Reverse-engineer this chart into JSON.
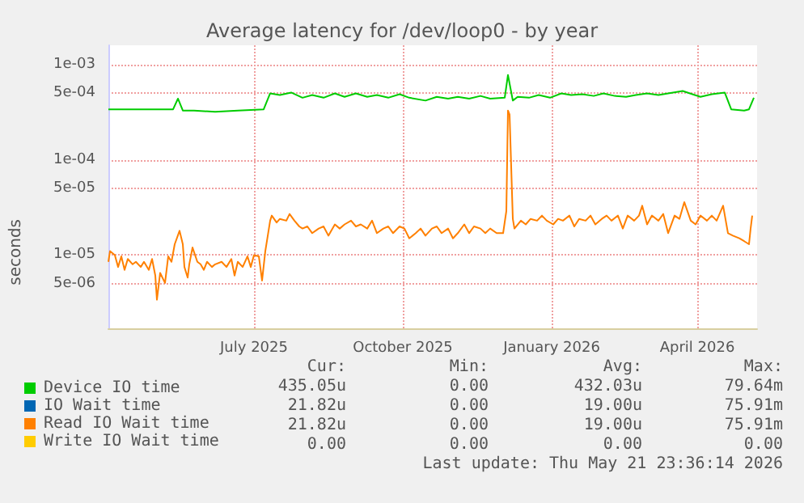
{
  "chart_data": {
    "type": "line",
    "title": "Average latency for /dev/loop0 - by year",
    "ylabel": "seconds",
    "log": "y",
    "grid": true,
    "legend": "bottom left",
    "marker": "none",
    "line_style": "solid",
    "xlim": [
      "2025-04-02",
      "2026-05-08"
    ],
    "xticks": [
      {
        "value": "2025-07-01",
        "label": "July 2025"
      },
      {
        "value": "2025-10-01",
        "label": "October 2025"
      },
      {
        "value": "2026-01-01",
        "label": "January 2026"
      },
      {
        "value": "2026-04-01",
        "label": "April 2026"
      }
    ],
    "ylim": [
      1.7e-06,
      0.0016
    ],
    "yticks": [
      {
        "value": 0.001,
        "label": "1e-03"
      },
      {
        "value": 0.0005,
        "label": "5e-04"
      },
      {
        "value": 0.0001,
        "label": "1e-04"
      },
      {
        "value": 5e-05,
        "label": "5e-05"
      },
      {
        "value": 1e-05,
        "label": "1e-05"
      },
      {
        "value": 5e-06,
        "label": "5e-06"
      }
    ],
    "series": [
      {
        "name": "Device IO time",
        "color": "#00cc00",
        "x": [
          "2025-04-02",
          "2025-05-12",
          "2025-05-15",
          "2025-05-18",
          "2025-05-25",
          "2025-06-07",
          "2025-06-21",
          "2025-07-07",
          "2025-07-11",
          "2025-07-17",
          "2025-07-24",
          "2025-07-31",
          "2025-08-06",
          "2025-08-13",
          "2025-08-20",
          "2025-08-26",
          "2025-09-02",
          "2025-09-09",
          "2025-09-15",
          "2025-09-22",
          "2025-09-29",
          "2025-10-05",
          "2025-10-15",
          "2025-10-22",
          "2025-10-29",
          "2025-11-04",
          "2025-11-11",
          "2025-11-18",
          "2025-11-24",
          "2025-12-03",
          "2025-12-05",
          "2025-12-08",
          "2025-12-11",
          "2025-12-18",
          "2025-12-24",
          "2025-12-31",
          "2026-01-07",
          "2026-01-13",
          "2026-01-20",
          "2026-01-27",
          "2026-02-02",
          "2026-02-09",
          "2026-02-16",
          "2026-02-22",
          "2026-03-01",
          "2026-03-08",
          "2026-03-14",
          "2026-03-23",
          "2026-03-29",
          "2026-04-03",
          "2026-04-10",
          "2026-04-18",
          "2026-04-22",
          "2026-04-30",
          "2026-05-03",
          "2026-05-06"
        ],
        "values": [
          0.00034,
          0.00034,
          0.00044,
          0.00033,
          0.00033,
          0.00032,
          0.00033,
          0.00034,
          0.0005,
          0.00048,
          0.00051,
          0.00045,
          0.00048,
          0.00045,
          0.0005,
          0.00046,
          0.0005,
          0.00046,
          0.00048,
          0.00045,
          0.00049,
          0.00045,
          0.00042,
          0.00046,
          0.00044,
          0.00046,
          0.00044,
          0.00047,
          0.00044,
          0.00045,
          0.00078,
          0.00042,
          0.00046,
          0.00045,
          0.00048,
          0.00045,
          0.0005,
          0.00048,
          0.00049,
          0.00047,
          0.0005,
          0.00047,
          0.00046,
          0.00048,
          0.0005,
          0.00048,
          0.0005,
          0.00053,
          0.00049,
          0.00046,
          0.00049,
          0.00051,
          0.00034,
          0.00033,
          0.00034,
          0.00045
        ]
      },
      {
        "name": "IO Wait time",
        "color": "#0066b3"
      },
      {
        "name": "Read IO Wait time",
        "color": "#ff8000",
        "x": [
          "2025-04-02",
          "2025-04-03",
          "2025-04-06",
          "2025-04-08",
          "2025-04-10",
          "2025-04-12",
          "2025-04-14",
          "2025-04-17",
          "2025-04-19",
          "2025-04-22",
          "2025-04-24",
          "2025-04-27",
          "2025-04-29",
          "2025-05-01",
          "2025-05-02",
          "2025-05-04",
          "2025-05-07",
          "2025-05-09",
          "2025-05-11",
          "2025-05-13",
          "2025-05-16",
          "2025-05-18",
          "2025-05-19",
          "2025-05-21",
          "2025-05-22",
          "2025-05-24",
          "2025-05-27",
          "2025-05-29",
          "2025-05-31",
          "2025-06-02",
          "2025-06-05",
          "2025-06-07",
          "2025-06-11",
          "2025-06-14",
          "2025-06-17",
          "2025-06-19",
          "2025-06-21",
          "2025-06-24",
          "2025-06-27",
          "2025-06-29",
          "2025-07-01",
          "2025-07-04",
          "2025-07-06",
          "2025-07-08",
          "2025-07-11",
          "2025-07-12",
          "2025-07-15",
          "2025-07-17",
          "2025-07-21",
          "2025-07-23",
          "2025-07-26",
          "2025-07-29",
          "2025-07-31",
          "2025-08-03",
          "2025-08-06",
          "2025-08-10",
          "2025-08-13",
          "2025-08-16",
          "2025-08-20",
          "2025-08-23",
          "2025-08-26",
          "2025-08-30",
          "2025-09-02",
          "2025-09-05",
          "2025-09-09",
          "2025-09-12",
          "2025-09-15",
          "2025-09-19",
          "2025-09-22",
          "2025-09-25",
          "2025-09-29",
          "2025-10-02",
          "2025-10-05",
          "2025-10-09",
          "2025-10-12",
          "2025-10-15",
          "2025-10-19",
          "2025-10-22",
          "2025-10-25",
          "2025-10-29",
          "2025-11-01",
          "2025-11-04",
          "2025-11-08",
          "2025-11-11",
          "2025-11-14",
          "2025-11-18",
          "2025-11-21",
          "2025-11-24",
          "2025-11-28",
          "2025-12-02",
          "2025-12-04",
          "2025-12-05",
          "2025-12-06",
          "2025-12-08",
          "2025-12-09",
          "2025-12-13",
          "2025-12-16",
          "2025-12-19",
          "2025-12-23",
          "2025-12-26",
          "2025-12-29",
          "2026-01-02",
          "2026-01-05",
          "2026-01-08",
          "2026-01-12",
          "2026-01-15",
          "2026-01-18",
          "2026-01-22",
          "2026-01-25",
          "2026-01-28",
          "2026-02-01",
          "2026-02-04",
          "2026-02-07",
          "2026-02-11",
          "2026-02-14",
          "2026-02-17",
          "2026-02-21",
          "2026-02-24",
          "2026-02-26",
          "2026-03-01",
          "2026-03-04",
          "2026-03-08",
          "2026-03-11",
          "2026-03-14",
          "2026-03-18",
          "2026-03-21",
          "2026-03-24",
          "2026-03-28",
          "2026-03-31",
          "2026-04-03",
          "2026-04-07",
          "2026-04-10",
          "2026-04-13",
          "2026-04-17",
          "2026-04-20",
          "2026-04-23",
          "2026-04-27",
          "2026-04-30",
          "2026-05-03",
          "2026-05-04",
          "2026-05-05"
        ],
        "values": [
          8.5e-06,
          1.1e-05,
          1e-05,
          7.5e-06,
          9.7e-06,
          7e-06,
          9.1e-06,
          8e-06,
          8.5e-06,
          7.5e-06,
          8.5e-06,
          7e-06,
          9.1e-06,
          6.1e-06,
          3.4e-06,
          6.5e-06,
          5.1e-06,
          9.7e-06,
          8.5e-06,
          1.3e-05,
          1.8e-05,
          1.3e-05,
          7.5e-06,
          5.8e-06,
          8e-06,
          1.2e-05,
          8.5e-06,
          8e-06,
          7e-06,
          8.5e-06,
          7.5e-06,
          8e-06,
          8.5e-06,
          7.5e-06,
          9.1e-06,
          6.1e-06,
          8.5e-06,
          7.5e-06,
          9.7e-06,
          7.5e-06,
          1e-05,
          9.7e-06,
          5.4e-06,
          1.1e-05,
          2.3e-05,
          2.6e-05,
          2.2e-05,
          2.4e-05,
          2.3e-05,
          2.7e-05,
          2.3e-05,
          2e-05,
          1.9e-05,
          2e-05,
          1.7e-05,
          1.9e-05,
          2e-05,
          1.6e-05,
          2.1e-05,
          1.9e-05,
          2.1e-05,
          2.3e-05,
          2e-05,
          2.1e-05,
          1.9e-05,
          2.3e-05,
          1.7e-05,
          1.9e-05,
          2e-05,
          1.7e-05,
          2e-05,
          1.9e-05,
          1.5e-05,
          1.7e-05,
          1.9e-05,
          1.6e-05,
          1.9e-05,
          2e-05,
          1.7e-05,
          1.9e-05,
          1.5e-05,
          1.7e-05,
          2.1e-05,
          1.7e-05,
          2e-05,
          1.9e-05,
          1.7e-05,
          1.9e-05,
          1.7e-05,
          1.7e-05,
          2.9e-05,
          0.00033,
          0.0003,
          2.4e-05,
          1.9e-05,
          2.3e-05,
          2.1e-05,
          2.4e-05,
          2.3e-05,
          2.6e-05,
          2.3e-05,
          2.1e-05,
          2.4e-05,
          2.3e-05,
          2.6e-05,
          2e-05,
          2.4e-05,
          2.3e-05,
          2.6e-05,
          2.1e-05,
          2.4e-05,
          2.6e-05,
          2.3e-05,
          2.6e-05,
          1.9e-05,
          2.6e-05,
          2.3e-05,
          2.6e-05,
          3.3e-05,
          2.1e-05,
          2.6e-05,
          2.3e-05,
          2.7e-05,
          1.7e-05,
          2.6e-05,
          2.4e-05,
          3.6e-05,
          2.3e-05,
          2.1e-05,
          2.6e-05,
          2.3e-05,
          2.6e-05,
          2.3e-05,
          3.3e-05,
          1.7e-05,
          1.6e-05,
          1.5e-05,
          1.4e-05,
          1.3e-05,
          1.9e-05,
          2.6e-05
        ]
      },
      {
        "name": "Write IO Wait time",
        "color": "#ffcc00"
      }
    ],
    "annotations": [
      "Cur:",
      "Min:",
      "Avg:",
      "Max:",
      "435.05u",
      "0.00",
      "432.03u",
      "79.64m",
      "21.82u",
      "0.00",
      "19.00u",
      "75.91m",
      "21.82u",
      "0.00",
      "19.00u",
      "75.91m",
      "0.00",
      "0.00",
      "0.00",
      "0.00",
      "Last update: Thu May 21 23:36:14 2026"
    ]
  }
}
